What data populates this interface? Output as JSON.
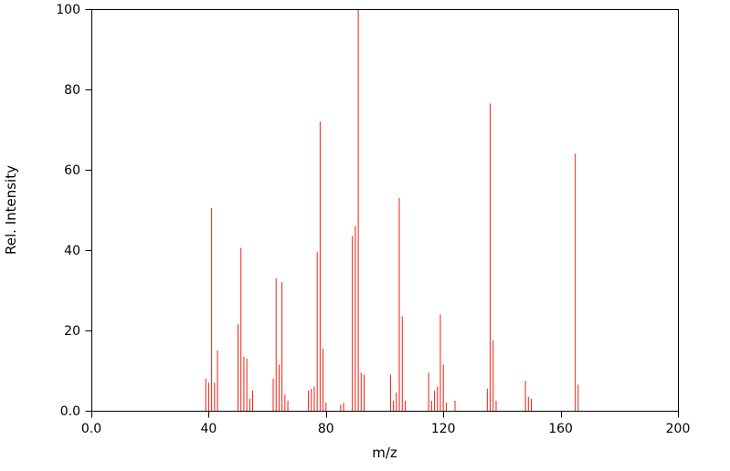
{
  "chart_data": {
    "type": "bar",
    "subtype": "mass-spectrum-stick-plot",
    "title": "",
    "xlabel": "m/z",
    "ylabel": "Rel. Intensity",
    "xlim": [
      0,
      200
    ],
    "ylim": [
      0,
      100
    ],
    "x_ticks": [
      0,
      40,
      80,
      120,
      160,
      200
    ],
    "x_tick_labels": [
      "0.0",
      "40",
      "80",
      "120",
      "160",
      "200"
    ],
    "y_ticks": [
      0,
      20,
      40,
      60,
      80,
      100
    ],
    "y_tick_labels": [
      "0.0",
      "20",
      "40",
      "60",
      "80",
      "100"
    ],
    "grid": false,
    "legend": "none",
    "bar_color": "#f02011",
    "axis_color": "#000000",
    "background_color": "#ffffff",
    "peaks": [
      [
        39,
        8
      ],
      [
        40,
        7
      ],
      [
        41,
        50.5
      ],
      [
        42,
        7
      ],
      [
        43,
        15
      ],
      [
        50,
        21.5
      ],
      [
        51,
        40.5
      ],
      [
        52,
        13.5
      ],
      [
        53,
        13
      ],
      [
        54,
        3
      ],
      [
        55,
        5
      ],
      [
        62,
        8
      ],
      [
        63,
        33
      ],
      [
        64,
        11.5
      ],
      [
        65,
        32
      ],
      [
        66,
        4
      ],
      [
        67,
        2.5
      ],
      [
        74,
        5
      ],
      [
        75,
        5.5
      ],
      [
        76,
        6
      ],
      [
        77,
        39.5
      ],
      [
        78,
        72
      ],
      [
        79,
        15.5
      ],
      [
        80,
        2
      ],
      [
        85,
        1.5
      ],
      [
        86,
        2
      ],
      [
        89,
        43.5
      ],
      [
        90,
        46
      ],
      [
        91,
        100
      ],
      [
        92,
        9.5
      ],
      [
        93,
        9
      ],
      [
        102,
        9
      ],
      [
        103,
        2.5
      ],
      [
        104,
        4.5
      ],
      [
        105,
        53
      ],
      [
        106,
        23.5
      ],
      [
        107,
        2.5
      ],
      [
        115,
        9.5
      ],
      [
        116,
        2.5
      ],
      [
        117,
        5
      ],
      [
        118,
        6
      ],
      [
        119,
        24
      ],
      [
        120,
        11.5
      ],
      [
        121,
        2
      ],
      [
        124,
        2.5
      ],
      [
        135,
        5.5
      ],
      [
        136,
        76.5
      ],
      [
        137,
        17.5
      ],
      [
        138,
        2.5
      ],
      [
        148,
        7.5
      ],
      [
        149,
        3.5
      ],
      [
        150,
        3
      ],
      [
        165,
        64
      ],
      [
        166,
        6.5
      ]
    ]
  }
}
